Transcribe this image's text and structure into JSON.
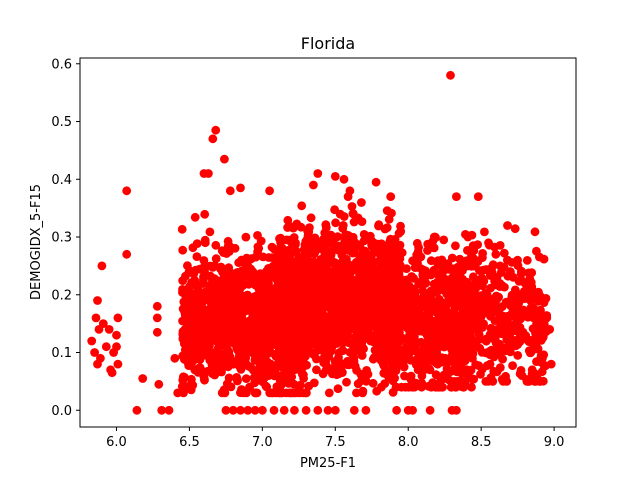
{
  "chart_data": {
    "type": "scatter",
    "title": "Florida",
    "xlabel": "PM25-F1",
    "ylabel": "DEMOGIDX_5-F15",
    "xlim": [
      5.75,
      9.15
    ],
    "ylim": [
      -0.029,
      0.61
    ],
    "x_ticks": [
      "6.0",
      "6.5",
      "7.0",
      "7.5",
      "8.0",
      "8.5",
      "9.0"
    ],
    "y_ticks": [
      "0.0",
      "0.1",
      "0.2",
      "0.3",
      "0.4",
      "0.5",
      "0.6"
    ],
    "grid": false,
    "legend": "none",
    "marker_color": "#ff0000",
    "series": [
      {
        "points": [
          [
            5.83,
            0.12
          ],
          [
            5.85,
            0.1
          ],
          [
            5.86,
            0.16
          ],
          [
            5.87,
            0.19
          ],
          [
            5.87,
            0.08
          ],
          [
            5.88,
            0.14
          ],
          [
            5.89,
            0.09
          ],
          [
            5.9,
            0.25
          ],
          [
            5.91,
            0.15
          ],
          [
            5.93,
            0.11
          ],
          [
            5.95,
            0.14
          ],
          [
            5.96,
            0.07
          ],
          [
            5.97,
            0.065
          ],
          [
            5.98,
            0.1
          ],
          [
            6.0,
            0.13
          ],
          [
            6.01,
            0.16
          ],
          [
            6.01,
            0.08
          ],
          [
            6.0,
            0.11
          ],
          [
            6.07,
            0.38
          ],
          [
            6.07,
            0.27
          ],
          [
            6.14,
            0.0
          ],
          [
            6.18,
            0.055
          ],
          [
            6.28,
            0.18
          ],
          [
            6.28,
            0.16
          ],
          [
            6.28,
            0.135
          ],
          [
            6.29,
            0.045
          ],
          [
            6.31,
            0.0
          ],
          [
            6.36,
            0.0
          ],
          [
            6.4,
            0.09
          ],
          [
            6.42,
            0.03
          ],
          [
            6.6,
            0.41
          ],
          [
            6.63,
            0.41
          ],
          [
            6.66,
            0.47
          ],
          [
            6.68,
            0.485
          ],
          [
            6.74,
            0.435
          ],
          [
            6.78,
            0.38
          ],
          [
            6.85,
            0.385
          ],
          [
            7.05,
            0.38
          ],
          [
            7.35,
            0.39
          ],
          [
            7.38,
            0.41
          ],
          [
            7.5,
            0.405
          ],
          [
            7.56,
            0.4
          ],
          [
            7.6,
            0.38
          ],
          [
            7.78,
            0.395
          ],
          [
            7.88,
            0.37
          ],
          [
            8.33,
            0.37
          ],
          [
            8.48,
            0.37
          ],
          [
            8.29,
            0.58
          ],
          [
            8.3,
            0.0
          ],
          [
            8.33,
            0.0
          ],
          [
            6.75,
            0.0
          ],
          [
            6.8,
            0.0
          ],
          [
            6.85,
            0.0
          ],
          [
            6.9,
            0.0
          ],
          [
            6.95,
            0.0
          ],
          [
            7.0,
            0.0
          ],
          [
            7.08,
            0.0
          ],
          [
            7.15,
            0.0
          ],
          [
            7.22,
            0.0
          ],
          [
            7.3,
            0.0
          ],
          [
            7.38,
            0.0
          ],
          [
            7.45,
            0.0
          ],
          [
            7.5,
            0.0
          ],
          [
            7.63,
            0.0
          ],
          [
            7.71,
            0.0
          ],
          [
            7.92,
            0.0
          ],
          [
            8.0,
            0.0
          ],
          [
            8.03,
            0.0
          ],
          [
            8.15,
            0.0
          ],
          [
            8.55,
            0.29
          ],
          [
            8.6,
            0.27
          ],
          [
            8.63,
            0.25
          ],
          [
            8.68,
            0.26
          ],
          [
            8.7,
            0.24
          ],
          [
            8.72,
            0.23
          ],
          [
            8.75,
            0.19
          ],
          [
            8.8,
            0.22
          ],
          [
            8.84,
            0.1
          ],
          [
            8.86,
            0.12
          ],
          [
            8.88,
            0.15
          ],
          [
            8.9,
            0.13
          ],
          [
            8.92,
            0.09
          ],
          [
            8.95,
            0.16
          ],
          [
            8.97,
            0.14
          ],
          [
            8.98,
            0.08
          ],
          [
            8.9,
            0.05
          ],
          [
            8.85,
            0.07
          ],
          [
            8.78,
            0.06
          ]
        ]
      }
    ],
    "dense_clusters": [
      {
        "x_range": [
          6.45,
          7.3
        ],
        "y_range": [
          0.03,
          0.34
        ],
        "y_center": 0.15,
        "count": 1100
      },
      {
        "x_range": [
          7.1,
          7.95
        ],
        "y_range": [
          0.03,
          0.37
        ],
        "y_center": 0.19,
        "count": 1500
      },
      {
        "x_range": [
          7.8,
          8.45
        ],
        "y_range": [
          0.04,
          0.3
        ],
        "y_center": 0.15,
        "count": 700
      },
      {
        "x_range": [
          8.2,
          8.95
        ],
        "y_range": [
          0.05,
          0.32
        ],
        "y_center": 0.16,
        "count": 500
      }
    ]
  }
}
